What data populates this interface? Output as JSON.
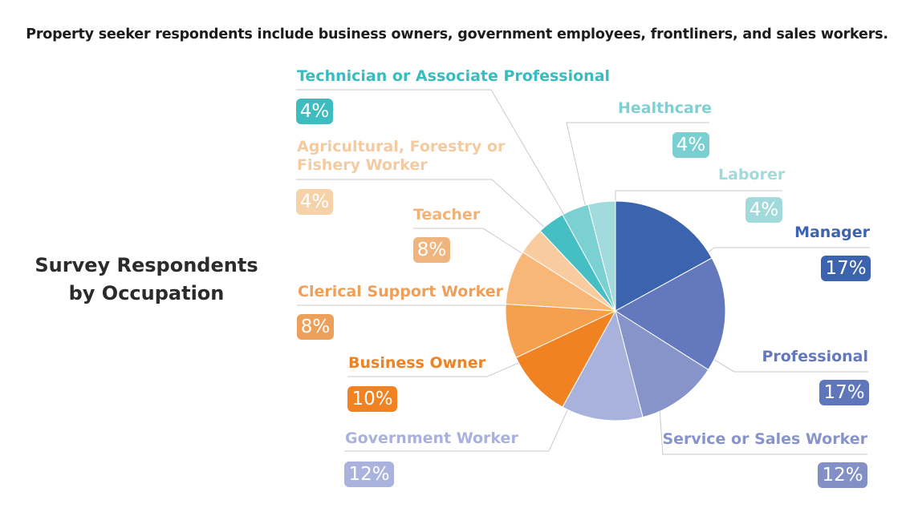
{
  "subtitle": "Property seeker respondents include business owners, government employees, frontliners, and sales workers.",
  "chart_data": {
    "type": "pie",
    "title": "Survey Respondents by Occupation",
    "title_lines": [
      "Survey Respondents",
      "by Occupation"
    ],
    "start": "12 o'clock, clockwise",
    "slices": [
      {
        "label": "Manager",
        "value": 17,
        "display": "17%",
        "color": "#3c63ae"
      },
      {
        "label": "Professional",
        "value": 17,
        "display": "17%",
        "color": "#6479bd"
      },
      {
        "label": "Service or Sales Worker",
        "value": 12,
        "display": "12%",
        "color": "#8794c9"
      },
      {
        "label": "Government Worker",
        "value": 12,
        "display": "12%",
        "color": "#a8b2dd"
      },
      {
        "label": "Business Owner",
        "value": 10,
        "display": "10%",
        "color": "#f08222"
      },
      {
        "label": "Clerical Support Worker",
        "value": 8,
        "display": "8%",
        "color": "#f5a04e"
      },
      {
        "label": "Teacher",
        "value": 8,
        "display": "8%",
        "color": "#f8b677"
      },
      {
        "label": "Agricultural, Forestry or Fishery Worker",
        "label_lines": [
          "Agricultural, Forestry or",
          "Fishery Worker"
        ],
        "value": 4,
        "display": "4%",
        "color": "#f9cca0"
      },
      {
        "label": "Technician or Associate Professional",
        "value": 4,
        "display": "4%",
        "color": "#45bfc3"
      },
      {
        "label": "Healthcare",
        "value": 4,
        "display": "4%",
        "color": "#7bd0d2"
      },
      {
        "label": "Laborer",
        "value": 4,
        "display": "4%",
        "color": "#a2dbdd"
      }
    ],
    "label_colors": {
      "Manager": "#3c63ae",
      "Professional": "#6479bd",
      "Service or Sales Worker": "#8794c9",
      "Government Worker": "#a8b2dd",
      "Business Owner": "#f08222",
      "Clerical Support Worker": "#eda05a",
      "Teacher": "#efb37a",
      "Agricultural, Forestry or Fishery Worker": "#f4cba0",
      "Technician or Associate Professional": "#39bcbf",
      "Healthcare": "#80cfd1",
      "Laborer": "#a2d9db"
    },
    "badge_colors": {
      "Manager": "#3c63ae",
      "Professional": "#5f76ba",
      "Service or Sales Worker": "#8290c6",
      "Government Worker": "#a9b3de",
      "Business Owner": "#f08222",
      "Clerical Support Worker": "#eda05a",
      "Teacher": "#f0b57e",
      "Agricultural, Forestry or Fishery Worker": "#f7d1a8",
      "Technician or Associate Professional": "#3dbdc0",
      "Healthcare": "#7ccfd1",
      "Laborer": "#a2dadc"
    },
    "leader_line_color": "#c9c9c9"
  }
}
